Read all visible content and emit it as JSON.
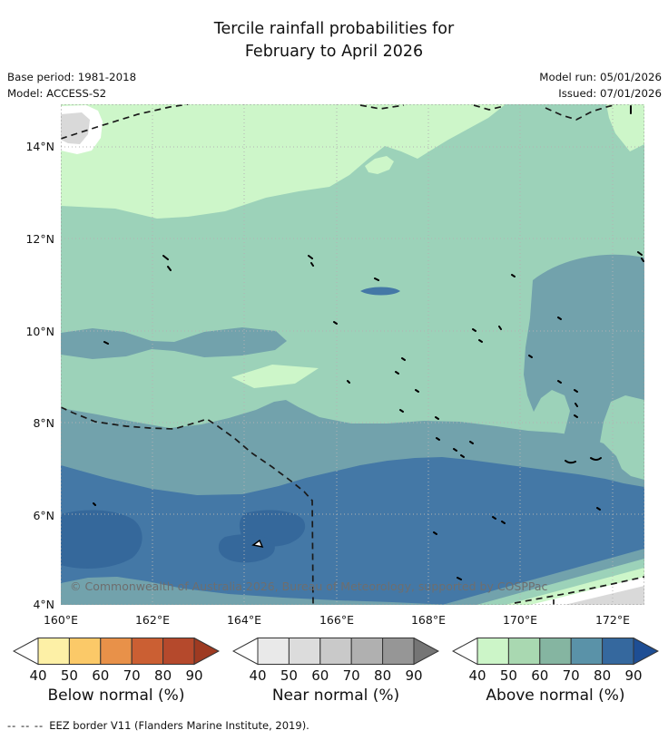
{
  "title": {
    "line1": "Tercile rainfall probabilities for",
    "line2": "February to April 2026"
  },
  "meta": {
    "base_period": "Base period: 1981-2018",
    "model": "Model: ACCESS-S2",
    "model_run": "Model run: 05/01/2026",
    "issued": "Issued: 07/01/2026"
  },
  "map": {
    "attribution": "© Commonwealth of Australia 2026, Bureau of Meteorology, supported by COSPPac",
    "y_ticks": [
      "14°N",
      "12°N",
      "10°N",
      "8°N",
      "6°N",
      "4°N"
    ],
    "x_ticks": [
      "160°E",
      "162°E",
      "164°E",
      "166°E",
      "168°E",
      "170°E",
      "172°E"
    ],
    "lat_range": [
      4,
      14.9
    ],
    "lon_range": [
      160,
      172.7
    ],
    "regions_summary": [
      {
        "category": "above-normal 40-50%",
        "area": "northern band ~13-15N and far NE corner strip"
      },
      {
        "category": "above-normal 50-60%",
        "area": "broad central band ~8-13N"
      },
      {
        "category": "above-normal 60-70%",
        "area": "band ~7-8N, patch 160-164.5E near 9.5-10N, blob 169-172.7E 8.5-11.5N"
      },
      {
        "category": "above-normal 70-80%",
        "area": "southern band ~4-7N"
      },
      {
        "category": "above-normal 80-90%",
        "area": "patches near 160-161.8E 5-6N and 163.5-165.3E 5-6N"
      },
      {
        "category": "near-normal 40-60%",
        "area": "small patch top-left ~160-161E 14-14.8N and bottom-right corner"
      }
    ]
  },
  "legend": {
    "tick_labels": [
      "40",
      "50",
      "60",
      "70",
      "80",
      "90"
    ],
    "bars": [
      {
        "label": "Below normal (%)",
        "colors": [
          "#fdf0a6",
          "#fbc968",
          "#e89149",
          "#cb5f33",
          "#b5492c"
        ],
        "arrow": "#9e3a21"
      },
      {
        "label": "Near normal (%)",
        "colors": [
          "#e9e9e9",
          "#dcdcdc",
          "#c9c9c9",
          "#b0b0b0",
          "#969696"
        ],
        "arrow": "#757575"
      },
      {
        "label": "Above normal (%)",
        "colors": [
          "#ccf5c8",
          "#a9d8b1",
          "#85b5a1",
          "#5a92a8",
          "#35689e"
        ],
        "arrow": "#1e4e94"
      }
    ]
  },
  "footer": {
    "dash_sample": "--  --  --",
    "text": "EEZ border V11 (Flanders Marine Institute, 2019)."
  },
  "map_palette": {
    "above_40_50": "#cdf6c9",
    "above_50_60": "#9cd2b9",
    "above_60_70": "#72a2ac",
    "above_70_80": "#4478a6",
    "above_80_90": "#35689b",
    "near_40_50": "#ffffff",
    "near_50_60": "#d9d9d9",
    "grid": "#b3b3b3",
    "border": "#999999",
    "eez": "#1a1a1a",
    "island": "#000000",
    "attribution_color": "#6e6e6e"
  }
}
